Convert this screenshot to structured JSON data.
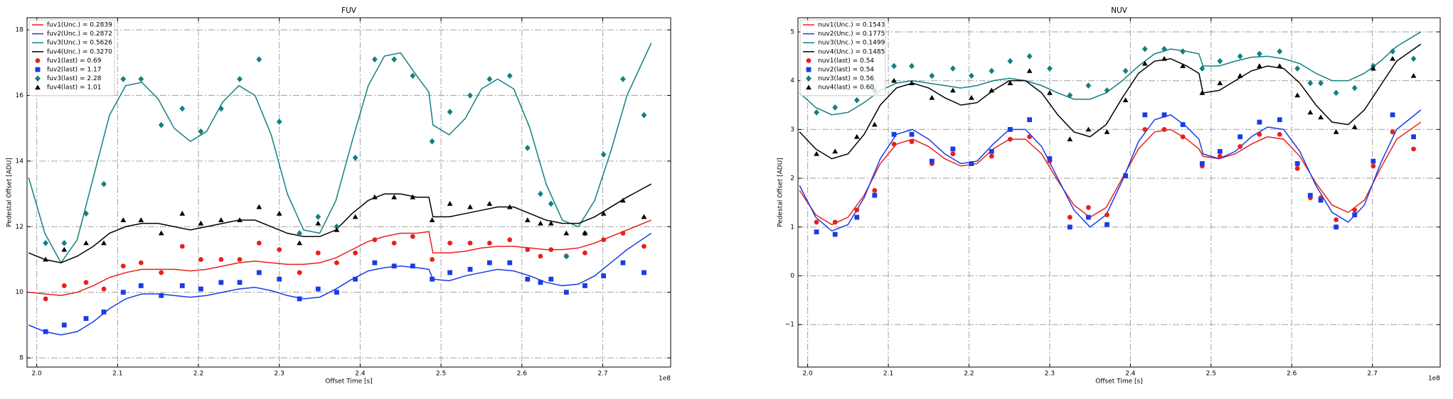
{
  "chart_data": [
    {
      "type": "line",
      "title": "FUV",
      "xlabel": "Offset Time [s]",
      "ylabel": "Pedestal Offset [ADU]",
      "x_offset_label": "1e8",
      "xlim": [
        1.988,
        2.784
      ],
      "ylim": [
        7.72,
        18.37
      ],
      "xticks": [
        {
          "value": 2.0,
          "label": "2.0"
        },
        {
          "value": 2.1,
          "label": "2.1"
        },
        {
          "value": 2.2,
          "label": "2.2"
        },
        {
          "value": 2.3,
          "label": "2.3"
        },
        {
          "value": 2.4,
          "label": "2.4"
        },
        {
          "value": 2.5,
          "label": "2.5"
        },
        {
          "value": 2.6,
          "label": "2.6"
        },
        {
          "value": 2.7,
          "label": "2.7"
        }
      ],
      "yticks": [
        8,
        10,
        12,
        14,
        16,
        18
      ],
      "grid": true,
      "legend": "upper-left",
      "x": [
        1.99,
        2.01,
        2.03,
        2.05,
        2.07,
        2.09,
        2.11,
        2.13,
        2.15,
        2.17,
        2.19,
        2.21,
        2.23,
        2.25,
        2.27,
        2.29,
        2.31,
        2.33,
        2.35,
        2.37,
        2.39,
        2.41,
        2.43,
        2.45,
        2.47,
        2.485,
        2.49,
        2.51,
        2.53,
        2.55,
        2.57,
        2.59,
        2.61,
        2.63,
        2.65,
        2.67,
        2.69,
        2.71,
        2.73,
        2.76
      ],
      "x_points": [
        2.011,
        2.034,
        2.061,
        2.083,
        2.107,
        2.129,
        2.154,
        2.18,
        2.203,
        2.228,
        2.251,
        2.275,
        2.3,
        2.325,
        2.348,
        2.371,
        2.394,
        2.418,
        2.442,
        2.465,
        2.489,
        2.511,
        2.536,
        2.56,
        2.585,
        2.607,
        2.623,
        2.636,
        2.655,
        2.678,
        2.701,
        2.725,
        2.751
      ],
      "series": [
        {
          "name": "fuv1(Unc.) = 0.2839",
          "kind": "line",
          "color": "#e8201c",
          "values": [
            10.0,
            9.95,
            9.9,
            10.0,
            10.2,
            10.45,
            10.6,
            10.7,
            10.7,
            10.7,
            10.65,
            10.7,
            10.8,
            10.9,
            10.95,
            10.9,
            10.85,
            10.85,
            10.9,
            11.05,
            11.3,
            11.55,
            11.7,
            11.8,
            11.8,
            11.85,
            11.2,
            11.2,
            11.25,
            11.35,
            11.4,
            11.4,
            11.35,
            11.3,
            11.3,
            11.35,
            11.5,
            11.7,
            11.9,
            12.2
          ]
        },
        {
          "name": "fuv2(Unc.) = 0.2872",
          "kind": "line",
          "color": "#1a3ce6",
          "values": [
            9.0,
            8.8,
            8.7,
            8.8,
            9.1,
            9.5,
            9.8,
            9.95,
            9.95,
            9.9,
            9.85,
            9.9,
            10.0,
            10.1,
            10.15,
            10.05,
            9.9,
            9.8,
            9.85,
            10.1,
            10.4,
            10.65,
            10.75,
            10.8,
            10.75,
            10.7,
            10.4,
            10.35,
            10.5,
            10.6,
            10.7,
            10.65,
            10.5,
            10.3,
            10.2,
            10.25,
            10.5,
            10.9,
            11.3,
            11.8
          ]
        },
        {
          "name": "fuv3(Unc.) = 0.5626",
          "kind": "line",
          "color": "#138080",
          "values": [
            13.5,
            11.8,
            10.9,
            11.6,
            13.5,
            15.4,
            16.3,
            16.4,
            15.9,
            15.0,
            14.6,
            14.9,
            15.8,
            16.3,
            16.0,
            14.8,
            13.0,
            11.9,
            11.8,
            12.8,
            14.6,
            16.3,
            17.2,
            17.3,
            16.6,
            16.1,
            15.1,
            14.8,
            15.3,
            16.2,
            16.5,
            16.2,
            15.0,
            13.3,
            12.2,
            12.0,
            12.8,
            14.3,
            16.0,
            17.6
          ]
        },
        {
          "name": "fuv4(Unc.) = 0.3270",
          "kind": "line",
          "color": "#000000",
          "values": [
            11.2,
            11.0,
            10.9,
            11.1,
            11.4,
            11.8,
            12.0,
            12.1,
            12.1,
            12.0,
            11.9,
            12.0,
            12.1,
            12.2,
            12.2,
            12.0,
            11.8,
            11.7,
            11.7,
            11.9,
            12.4,
            12.8,
            13.0,
            13.0,
            12.9,
            12.9,
            12.3,
            12.3,
            12.4,
            12.5,
            12.6,
            12.6,
            12.4,
            12.2,
            12.1,
            12.1,
            12.3,
            12.6,
            12.9,
            13.3
          ]
        },
        {
          "name": "fuv1(last) = 0.69",
          "kind": "scatter",
          "marker": "circle",
          "color": "#e8201c",
          "values": [
            9.8,
            10.2,
            10.3,
            10.1,
            10.8,
            10.9,
            10.6,
            11.4,
            11.0,
            11.0,
            11.0,
            11.5,
            11.3,
            10.6,
            11.2,
            10.9,
            11.2,
            11.6,
            11.5,
            11.7,
            11.0,
            11.5,
            11.5,
            11.5,
            11.6,
            11.3,
            11.1,
            11.3,
            11.1,
            11.2,
            11.6,
            11.8,
            11.4
          ]
        },
        {
          "name": "fuv2(last) = 1.17",
          "kind": "scatter",
          "marker": "square",
          "color": "#1a3ce6",
          "values": [
            8.8,
            9.0,
            9.2,
            9.4,
            10.0,
            10.2,
            9.9,
            10.2,
            10.1,
            10.3,
            10.3,
            10.6,
            10.4,
            9.8,
            10.1,
            10.0,
            10.4,
            10.9,
            10.8,
            10.8,
            10.4,
            10.6,
            10.7,
            10.9,
            10.9,
            10.4,
            10.3,
            10.4,
            10.0,
            10.2,
            10.5,
            10.9,
            10.6
          ]
        },
        {
          "name": "fuv3(last) = 2.28",
          "kind": "scatter",
          "marker": "diamond",
          "color": "#138080",
          "values": [
            11.5,
            11.5,
            12.4,
            13.3,
            16.5,
            16.5,
            15.1,
            15.6,
            14.9,
            15.6,
            16.5,
            17.1,
            15.2,
            11.8,
            12.3,
            12.0,
            14.1,
            17.1,
            17.1,
            16.6,
            14.6,
            15.5,
            16.0,
            16.5,
            16.6,
            14.4,
            13.0,
            12.7,
            11.1,
            11.8,
            14.2,
            16.5,
            15.4
          ]
        },
        {
          "name": "fuv4(last) = 1.01",
          "kind": "scatter",
          "marker": "triangle",
          "color": "#000000",
          "values": [
            11.0,
            11.3,
            11.5,
            11.5,
            12.2,
            12.2,
            11.8,
            12.4,
            12.1,
            12.2,
            12.2,
            12.6,
            12.4,
            11.5,
            12.1,
            11.9,
            12.3,
            12.9,
            12.9,
            12.9,
            12.2,
            12.7,
            12.6,
            12.7,
            12.6,
            12.2,
            12.1,
            12.1,
            11.8,
            11.8,
            12.4,
            12.8,
            12.3
          ]
        }
      ]
    },
    {
      "type": "line",
      "title": "NUV",
      "xlabel": "Offset Time [s]",
      "ylabel": "Pedestal Offset [ADU]",
      "x_offset_label": "1e8",
      "xlim": [
        1.988,
        2.784
      ],
      "ylim": [
        -1.87,
        5.29
      ],
      "xticks": [
        {
          "value": 2.0,
          "label": "2.0"
        },
        {
          "value": 2.1,
          "label": "2.1"
        },
        {
          "value": 2.2,
          "label": "2.2"
        },
        {
          "value": 2.3,
          "label": "2.3"
        },
        {
          "value": 2.4,
          "label": "2.4"
        },
        {
          "value": 2.5,
          "label": "2.5"
        },
        {
          "value": 2.6,
          "label": "2.6"
        },
        {
          "value": 2.7,
          "label": "2.7"
        }
      ],
      "yticks": [
        {
          "value": -1,
          "label": "−1"
        },
        0,
        1,
        2,
        3,
        4,
        5
      ],
      "grid": true,
      "legend": "upper-left",
      "x": [
        1.99,
        2.01,
        2.03,
        2.05,
        2.07,
        2.09,
        2.11,
        2.13,
        2.15,
        2.17,
        2.19,
        2.21,
        2.23,
        2.25,
        2.27,
        2.29,
        2.31,
        2.33,
        2.35,
        2.37,
        2.39,
        2.41,
        2.43,
        2.45,
        2.47,
        2.485,
        2.49,
        2.51,
        2.53,
        2.55,
        2.57,
        2.59,
        2.61,
        2.63,
        2.65,
        2.67,
        2.69,
        2.71,
        2.73,
        2.76
      ],
      "x_points": [
        2.011,
        2.034,
        2.061,
        2.083,
        2.107,
        2.129,
        2.154,
        2.18,
        2.203,
        2.228,
        2.251,
        2.275,
        2.3,
        2.325,
        2.348,
        2.371,
        2.394,
        2.418,
        2.442,
        2.465,
        2.489,
        2.511,
        2.536,
        2.56,
        2.585,
        2.607,
        2.623,
        2.636,
        2.655,
        2.678,
        2.701,
        2.725,
        2.751
      ],
      "series": [
        {
          "name": "nuv1(Unc.) = 0.1543",
          "kind": "line",
          "color": "#e8201c",
          "values": [
            1.75,
            1.25,
            1.05,
            1.2,
            1.65,
            2.3,
            2.7,
            2.8,
            2.65,
            2.4,
            2.25,
            2.3,
            2.6,
            2.8,
            2.8,
            2.5,
            1.95,
            1.45,
            1.2,
            1.4,
            2.0,
            2.6,
            2.95,
            3.0,
            2.8,
            2.6,
            2.45,
            2.4,
            2.5,
            2.7,
            2.85,
            2.8,
            2.45,
            1.9,
            1.45,
            1.3,
            1.55,
            2.2,
            2.8,
            3.15
          ]
        },
        {
          "name": "nuv2(Unc.) = 0.1775",
          "kind": "line",
          "color": "#1a3ce6",
          "values": [
            1.85,
            1.2,
            0.92,
            1.05,
            1.6,
            2.4,
            2.9,
            3.0,
            2.8,
            2.5,
            2.3,
            2.35,
            2.7,
            3.0,
            3.0,
            2.65,
            2.0,
            1.35,
            1.0,
            1.25,
            1.95,
            2.75,
            3.2,
            3.3,
            3.05,
            2.8,
            2.5,
            2.4,
            2.55,
            2.85,
            3.05,
            3.0,
            2.55,
            1.85,
            1.3,
            1.1,
            1.45,
            2.3,
            3.0,
            3.4
          ]
        },
        {
          "name": "nuv3(Unc.) = 0.1499",
          "kind": "line",
          "color": "#138080",
          "values": [
            3.75,
            3.45,
            3.3,
            3.35,
            3.55,
            3.8,
            3.95,
            4.0,
            3.95,
            3.9,
            3.85,
            3.9,
            4.0,
            4.05,
            4.0,
            3.9,
            3.75,
            3.62,
            3.62,
            3.75,
            4.0,
            4.3,
            4.55,
            4.65,
            4.6,
            4.55,
            4.3,
            4.3,
            4.4,
            4.48,
            4.5,
            4.45,
            4.35,
            4.15,
            4.0,
            4.0,
            4.15,
            4.4,
            4.7,
            5.0
          ]
        },
        {
          "name": "nuv4(Unc.) = 0.1485",
          "kind": "line",
          "color": "#000000",
          "values": [
            2.95,
            2.6,
            2.4,
            2.5,
            2.9,
            3.5,
            3.85,
            3.95,
            3.85,
            3.65,
            3.5,
            3.55,
            3.8,
            4.0,
            4.0,
            3.75,
            3.3,
            2.95,
            2.85,
            3.1,
            3.65,
            4.15,
            4.4,
            4.45,
            4.3,
            4.15,
            3.75,
            3.8,
            4.0,
            4.2,
            4.3,
            4.25,
            3.95,
            3.5,
            3.15,
            3.1,
            3.4,
            3.9,
            4.4,
            4.75
          ]
        },
        {
          "name": "nuv1(last) = 0.54",
          "kind": "scatter",
          "marker": "circle",
          "color": "#e8201c",
          "values": [
            1.1,
            1.1,
            1.35,
            1.75,
            2.7,
            2.75,
            2.3,
            2.5,
            2.3,
            2.45,
            2.8,
            2.85,
            2.35,
            1.2,
            1.4,
            1.25,
            2.05,
            3.0,
            3.0,
            2.85,
            2.25,
            2.45,
            2.65,
            2.9,
            2.9,
            2.2,
            1.6,
            1.6,
            1.15,
            1.35,
            2.25,
            2.95,
            2.6
          ]
        },
        {
          "name": "nuv2(last) = 0.54",
          "kind": "scatter",
          "marker": "square",
          "color": "#1a3ce6",
          "values": [
            0.9,
            0.85,
            1.2,
            1.65,
            2.9,
            2.9,
            2.35,
            2.6,
            2.3,
            2.55,
            3.0,
            3.2,
            2.4,
            1.0,
            1.2,
            1.05,
            2.05,
            3.3,
            3.3,
            3.1,
            2.3,
            2.55,
            2.85,
            3.15,
            3.2,
            2.3,
            1.65,
            1.55,
            1.0,
            1.25,
            2.35,
            3.3,
            2.85
          ]
        },
        {
          "name": "nuv3(last) = 0.56",
          "kind": "scatter",
          "marker": "diamond",
          "color": "#138080",
          "values": [
            3.35,
            3.45,
            3.6,
            3.8,
            4.3,
            4.3,
            4.1,
            4.25,
            4.1,
            4.2,
            4.4,
            4.5,
            4.25,
            3.7,
            3.9,
            3.8,
            4.2,
            4.65,
            4.65,
            4.6,
            4.25,
            4.4,
            4.5,
            4.55,
            4.6,
            4.25,
            3.95,
            3.95,
            3.75,
            3.85,
            4.3,
            4.6,
            4.45
          ]
        },
        {
          "name": "nuv4(last) = 0.60",
          "kind": "scatter",
          "marker": "triangle",
          "color": "#000000",
          "values": [
            2.5,
            2.55,
            2.85,
            3.1,
            4.0,
            3.95,
            3.65,
            3.8,
            3.65,
            3.8,
            3.95,
            4.2,
            3.75,
            2.8,
            3.0,
            2.95,
            3.6,
            4.35,
            4.45,
            4.3,
            3.75,
            3.95,
            4.1,
            4.3,
            4.3,
            3.7,
            3.35,
            3.25,
            2.95,
            3.05,
            4.25,
            4.45,
            4.1
          ]
        }
      ]
    }
  ]
}
